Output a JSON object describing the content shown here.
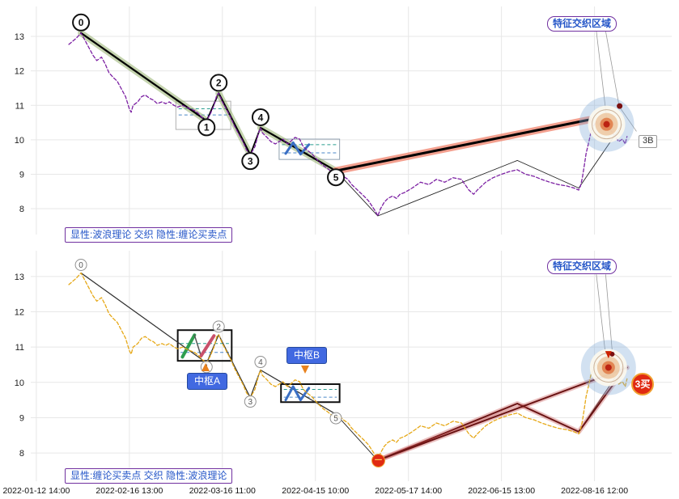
{
  "figure": {
    "background": "#ffffff",
    "grid_color": "#e7e7e7"
  },
  "chart_data": {
    "type": "line",
    "x_axis": {
      "tick_labels": [
        "2022-01-12 14:00",
        "2022-02-16 13:00",
        "2022-03-16 11:00",
        "2022-04-15 10:00",
        "2022-05-17 14:00",
        "2022-06-15 13:00",
        "2022-08-16 12:00"
      ],
      "tick_positions": [
        0,
        1,
        2,
        3,
        4,
        5,
        6
      ],
      "xlim": [
        -0.06,
        6.83
      ]
    },
    "price_series": {
      "x": [
        0.35,
        0.43,
        0.48,
        0.52,
        0.57,
        0.61,
        0.65,
        0.7,
        0.74,
        0.78,
        0.83,
        0.87,
        0.91,
        0.96,
        1.0,
        1.02,
        1.04,
        1.09,
        1.13,
        1.17,
        1.22,
        1.26,
        1.3,
        1.35,
        1.39,
        1.43,
        1.48,
        1.52,
        1.57,
        1.61,
        1.65,
        1.7,
        1.74,
        1.78,
        1.83,
        1.87,
        1.91,
        1.94,
        1.96,
        2.0,
        2.04,
        2.09,
        2.13,
        2.17,
        2.22,
        2.26,
        2.3,
        2.35,
        2.39,
        2.41,
        2.43,
        2.48,
        2.52,
        2.57,
        2.61,
        2.65,
        2.7,
        2.74,
        2.78,
        2.83,
        2.87,
        2.91,
        2.96,
        3.0,
        3.04,
        3.09,
        3.13,
        3.17,
        3.22,
        3.26,
        3.3,
        3.35,
        3.39,
        3.43,
        3.48,
        3.52,
        3.57,
        3.61,
        3.65,
        3.67,
        3.7,
        3.74,
        3.78,
        3.83,
        3.87,
        3.91,
        3.96,
        4.04,
        4.13,
        4.22,
        4.3,
        4.39,
        4.48,
        4.57,
        4.65,
        4.7,
        4.74,
        4.83,
        4.91,
        5.0,
        5.09,
        5.17,
        5.26,
        5.35,
        5.43,
        5.52,
        5.61,
        5.7,
        5.78,
        5.83,
        5.85,
        5.87,
        5.89,
        5.91,
        5.94,
        5.96,
        5.99,
        6.02,
        6.04,
        6.07,
        6.09,
        6.13,
        6.15,
        6.17,
        6.22,
        6.26,
        6.3,
        6.33,
        6.35
      ],
      "y": [
        12.77,
        12.95,
        13.1,
        12.9,
        12.65,
        12.45,
        12.3,
        12.4,
        12.2,
        11.95,
        11.8,
        11.7,
        11.5,
        11.25,
        10.9,
        10.8,
        11.0,
        11.1,
        11.25,
        11.3,
        11.2,
        11.15,
        11.05,
        11.1,
        11.05,
        11.1,
        11.0,
        10.95,
        11.0,
        10.95,
        10.9,
        10.85,
        10.77,
        10.65,
        10.55,
        10.75,
        11.0,
        11.3,
        11.35,
        11.1,
        10.9,
        10.65,
        10.4,
        10.2,
        9.95,
        9.7,
        9.57,
        9.8,
        10.2,
        10.35,
        10.2,
        10.07,
        9.95,
        9.88,
        9.95,
        10.02,
        9.88,
        9.97,
        10.07,
        10.02,
        9.8,
        9.7,
        9.6,
        9.48,
        9.36,
        9.24,
        9.17,
        9.08,
        9.0,
        9.05,
        8.94,
        8.85,
        8.7,
        8.6,
        8.47,
        8.37,
        8.23,
        8.07,
        7.9,
        7.79,
        8.0,
        8.19,
        8.3,
        8.37,
        8.3,
        8.42,
        8.47,
        8.6,
        8.77,
        8.7,
        8.85,
        8.77,
        8.9,
        8.85,
        8.54,
        8.42,
        8.54,
        8.77,
        8.9,
        9.0,
        9.08,
        9.13,
        9.0,
        8.94,
        8.85,
        8.77,
        8.7,
        8.66,
        8.6,
        8.54,
        8.66,
        8.9,
        9.24,
        9.6,
        9.95,
        10.2,
        10.4,
        10.54,
        10.4,
        10.58,
        10.5,
        10.35,
        10.54,
        10.3,
        10.1,
        9.95,
        10.02,
        9.88,
        10.1
      ]
    },
    "wave_points": [
      {
        "label": "0",
        "x": 0.48,
        "y": 13.1,
        "dir": "above"
      },
      {
        "label": "1",
        "x": 1.83,
        "y": 10.55,
        "dir": "below"
      },
      {
        "label": "2",
        "x": 1.96,
        "y": 11.35,
        "dir": "above"
      },
      {
        "label": "3",
        "x": 2.3,
        "y": 9.57,
        "dir": "below"
      },
      {
        "label": "4",
        "x": 2.41,
        "y": 10.35,
        "dir": "above"
      },
      {
        "label": "5",
        "x": 3.22,
        "y": 9.1,
        "dir": "below"
      }
    ],
    "panels": [
      {
        "id": "top",
        "legend": "显性:波浪理论 交织 隐性:缠论买卖点",
        "region_label": "特征交织区域",
        "badge_3b": "3B",
        "ylim": [
          7.25,
          13.87
        ],
        "yticks": [
          8,
          9,
          10,
          11,
          12,
          13
        ],
        "price_color": "#7b1fa2",
        "marker": {
          "r": 10,
          "stroke": "#111111",
          "stroke_width": 2,
          "fill": "#ffffff",
          "font_size": 12,
          "font_weight": "bold",
          "text_color": "#111111"
        },
        "boxes": [
          {
            "x0": 1.5,
            "x1": 2.09,
            "y0": 10.3,
            "y1": 11.12,
            "stroke": "#b0b0b0",
            "width": 1
          },
          {
            "x0": 2.61,
            "x1": 3.26,
            "y0": 9.43,
            "y1": 10.02,
            "stroke": "#90a0b0",
            "width": 1
          }
        ],
        "box_levels": [
          {
            "x0": 1.53,
            "x1": 2.06,
            "y": 10.9,
            "color": "#2a9d8f"
          },
          {
            "x0": 1.53,
            "x1": 2.06,
            "y": 10.72,
            "color": "#4a86c8"
          },
          {
            "x0": 2.64,
            "x1": 3.23,
            "y": 9.86,
            "color": "#2a9d8f"
          },
          {
            "x0": 2.64,
            "x1": 3.23,
            "y": 9.62,
            "color": "#4a86c8"
          }
        ],
        "zigzags": [
          {
            "points": [
              [
                2.68,
                9.6
              ],
              [
                2.76,
                9.92
              ],
              [
                2.84,
                9.58
              ],
              [
                2.93,
                9.86
              ]
            ],
            "color": "#3a6fc4",
            "width": 3
          }
        ],
        "overlays": [
          {
            "name": "segment-line",
            "points": [
              [
                0.48,
                13.1
              ],
              [
                1.83,
                10.55
              ],
              [
                1.96,
                11.35
              ],
              [
                2.3,
                9.57
              ],
              [
                2.41,
                10.35
              ],
              [
                3.22,
                9.1
              ],
              [
                3.67,
                7.79
              ],
              [
                5.17,
                9.4
              ],
              [
                5.83,
                8.6
              ],
              [
                6.3,
                10.45
              ]
            ],
            "color": "#222222",
            "width": 0.9
          },
          {
            "name": "impulse-wave-0-1",
            "points": [
              [
                0.48,
                13.1
              ],
              [
                1.83,
                10.55
              ]
            ],
            "color": "#000000",
            "width": 2.2,
            "glow": "rgba(139,170,95,0.5)",
            "glow_width": 8
          },
          {
            "name": "connector-1-2",
            "points": [
              [
                1.83,
                10.55
              ],
              [
                1.96,
                11.35
              ]
            ],
            "color": "#000000",
            "width": 1.8
          },
          {
            "name": "impulse-wave-2-3",
            "points": [
              [
                1.96,
                11.35
              ],
              [
                2.3,
                9.57
              ]
            ],
            "color": "#000000",
            "width": 2.2,
            "glow": "rgba(139,170,95,0.5)",
            "glow_width": 8
          },
          {
            "name": "connector-3-4",
            "points": [
              [
                2.3,
                9.57
              ],
              [
                2.41,
                10.35
              ]
            ],
            "color": "#000000",
            "width": 1.8
          },
          {
            "name": "impulse-wave-4-5",
            "points": [
              [
                2.41,
                10.35
              ],
              [
                3.22,
                9.1
              ]
            ],
            "color": "#000000",
            "width": 2.2,
            "glow": "rgba(139,170,95,0.5)",
            "glow_width": 8
          },
          {
            "name": "wave-b-line",
            "points": [
              [
                3.22,
                9.1
              ],
              [
                5.94,
                10.58
              ]
            ],
            "color": "#000000",
            "width": 3,
            "glow": "rgba(238,120,95,0.7)",
            "glow_width": 9
          },
          {
            "name": "region-leader-a",
            "points": [
              [
                6.12,
                13.15
              ],
              [
                6.26,
                11.05
              ]
            ],
            "color": "#999999",
            "width": 0.8
          },
          {
            "name": "region-leader-b",
            "points": [
              [
                6.02,
                13.15
              ],
              [
                6.13,
                10.65
              ]
            ],
            "color": "#999999",
            "width": 0.8
          },
          {
            "name": "badge-3b-leader",
            "points": [
              [
                6.27,
                10.95
              ],
              [
                6.45,
                10.25
              ]
            ],
            "color": "#999999",
            "width": 0.8
          }
        ],
        "bullseye": {
          "x": 6.13,
          "y": 10.45
        },
        "dots": [
          {
            "x": 6.27,
            "y": 10.98,
            "r": 3.5,
            "color": "#7b1010"
          }
        ]
      },
      {
        "id": "bottom",
        "legend": "显性:缠论买卖点 交织 隐性:波浪理论",
        "region_label": "特征交织区域",
        "pivot_labels": [
          "中枢A",
          "中枢B"
        ],
        "badge_3buy": "3买",
        "badge_one": "一",
        "ylim": [
          7.2,
          13.73
        ],
        "yticks": [
          8,
          9,
          10,
          11,
          12,
          13
        ],
        "price_color": "#e6a817",
        "marker": {
          "r": 7,
          "stroke": "#909090",
          "stroke_width": 1,
          "fill": "rgba(255,255,255,0.85)",
          "font_size": 10,
          "font_weight": "normal",
          "text_color": "#555555"
        },
        "boxes": [
          {
            "x0": 1.52,
            "x1": 2.1,
            "y0": 10.61,
            "y1": 11.48,
            "stroke": "#111111",
            "width": 2
          },
          {
            "x0": 2.63,
            "x1": 3.26,
            "y0": 9.44,
            "y1": 9.95,
            "stroke": "#111111",
            "width": 2
          }
        ],
        "box_levels": [
          {
            "x0": 1.55,
            "x1": 2.07,
            "y": 11.1,
            "color": "#2a9d8f"
          },
          {
            "x0": 1.55,
            "x1": 2.07,
            "y": 10.85,
            "color": "#4a86c8"
          },
          {
            "x0": 2.66,
            "x1": 3.23,
            "y": 9.8,
            "color": "#2a9d8f"
          },
          {
            "x0": 2.66,
            "x1": 3.23,
            "y": 9.58,
            "color": "#4a86c8"
          }
        ],
        "zigzags": [
          {
            "points": [
              [
                1.57,
                10.72
              ],
              [
                1.7,
                11.34
              ]
            ],
            "color": "#2e9e4f",
            "width": 4
          },
          {
            "points": [
              [
                1.7,
                11.34
              ],
              [
                1.77,
                10.75
              ]
            ],
            "color": "#555555",
            "width": 1.5
          },
          {
            "points": [
              [
                1.77,
                10.75
              ],
              [
                1.91,
                11.32
              ]
            ],
            "color": "#c8506a",
            "width": 4
          },
          {
            "points": [
              [
                2.68,
                9.5
              ],
              [
                2.76,
                9.88
              ],
              [
                2.84,
                9.5
              ],
              [
                2.93,
                9.84
              ]
            ],
            "color": "#3a6fc4",
            "width": 3
          }
        ],
        "overlays": [
          {
            "name": "segment-line",
            "points": [
              [
                0.48,
                13.1
              ],
              [
                1.83,
                10.55
              ],
              [
                1.96,
                11.35
              ],
              [
                2.3,
                9.57
              ],
              [
                2.41,
                10.35
              ],
              [
                3.22,
                9.1
              ],
              [
                3.67,
                7.79
              ],
              [
                5.17,
                9.4
              ],
              [
                5.83,
                8.6
              ],
              [
                6.3,
                10.45
              ]
            ],
            "color": "#222222",
            "width": 0.9
          },
          {
            "name": "wave-line",
            "points": [
              [
                0.48,
                13.1
              ],
              [
                1.83,
                10.55
              ],
              [
                1.96,
                11.35
              ],
              [
                2.3,
                9.57
              ],
              [
                2.41,
                10.35
              ],
              [
                3.22,
                9.1
              ]
            ],
            "color": "#333333",
            "width": 1.2
          },
          {
            "name": "chan-trend-zigzag",
            "points": [
              [
                3.67,
                7.79
              ],
              [
                5.17,
                9.4
              ],
              [
                5.83,
                8.6
              ],
              [
                6.3,
                10.3
              ]
            ],
            "color": "#6b1414",
            "width": 2,
            "glow": "rgba(195,75,75,0.35)",
            "glow_width": 6
          },
          {
            "name": "chan-trend-line",
            "points": [
              [
                3.67,
                7.79
              ],
              [
                6.35,
                10.42
              ]
            ],
            "color": "#6b1414",
            "width": 2,
            "glow": "rgba(195,75,75,0.35)",
            "glow_width": 6
          },
          {
            "name": "region-leader-a",
            "points": [
              [
                6.12,
                13.05
              ],
              [
                6.19,
                10.9
              ]
            ],
            "color": "#999999",
            "width": 0.8
          },
          {
            "name": "region-leader-b",
            "points": [
              [
                6.02,
                13.05
              ],
              [
                6.12,
                10.75
              ]
            ],
            "color": "#999999",
            "width": 0.8
          }
        ],
        "bullseye": {
          "x": 6.15,
          "y": 10.42
        },
        "dots": [
          {
            "x": 6.19,
            "y": 10.8,
            "r": 3,
            "color": "#7b1010"
          }
        ],
        "arrow_down": {
          "x": 6.15,
          "y": 10.68,
          "color": "#cc2200"
        }
      }
    ]
  }
}
